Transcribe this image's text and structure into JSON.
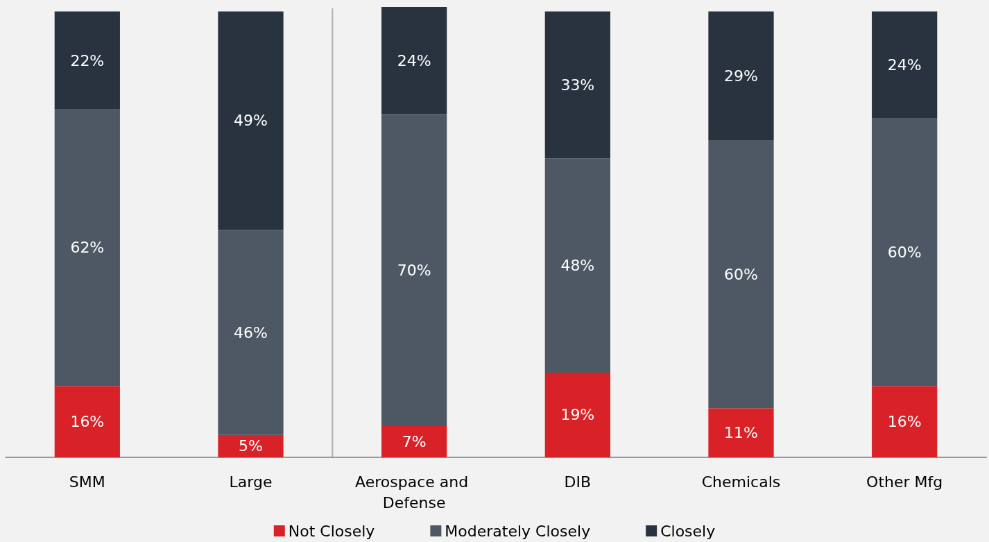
{
  "chart_data": {
    "type": "bar",
    "stacked": true,
    "categories": [
      "SMM",
      "Large",
      "Aerospace and Defense",
      "DIB",
      "Chemicals",
      "Other Mfg"
    ],
    "series": [
      {
        "name": "Not Closely",
        "color": "#d92228",
        "values": [
          16,
          5,
          7,
          19,
          11,
          16
        ],
        "value_labels": [
          "16%",
          "5%",
          "7%",
          "19%",
          "11%",
          "16%"
        ]
      },
      {
        "name": "Moderately Closely",
        "color": "#4d5864",
        "values": [
          62,
          46,
          70,
          48,
          60,
          60
        ],
        "value_labels": [
          "62%",
          "46%",
          "70%",
          "48%",
          "60%",
          "60%"
        ]
      },
      {
        "name": "Closely",
        "color": "#293340",
        "values": [
          22,
          49,
          24,
          33,
          29,
          24
        ],
        "value_labels": [
          "22%",
          "49%",
          "24%",
          "33%",
          "29%",
          "24%"
        ]
      }
    ],
    "tick_labels": "x",
    "legend": "bottom",
    "grid": false
  }
}
